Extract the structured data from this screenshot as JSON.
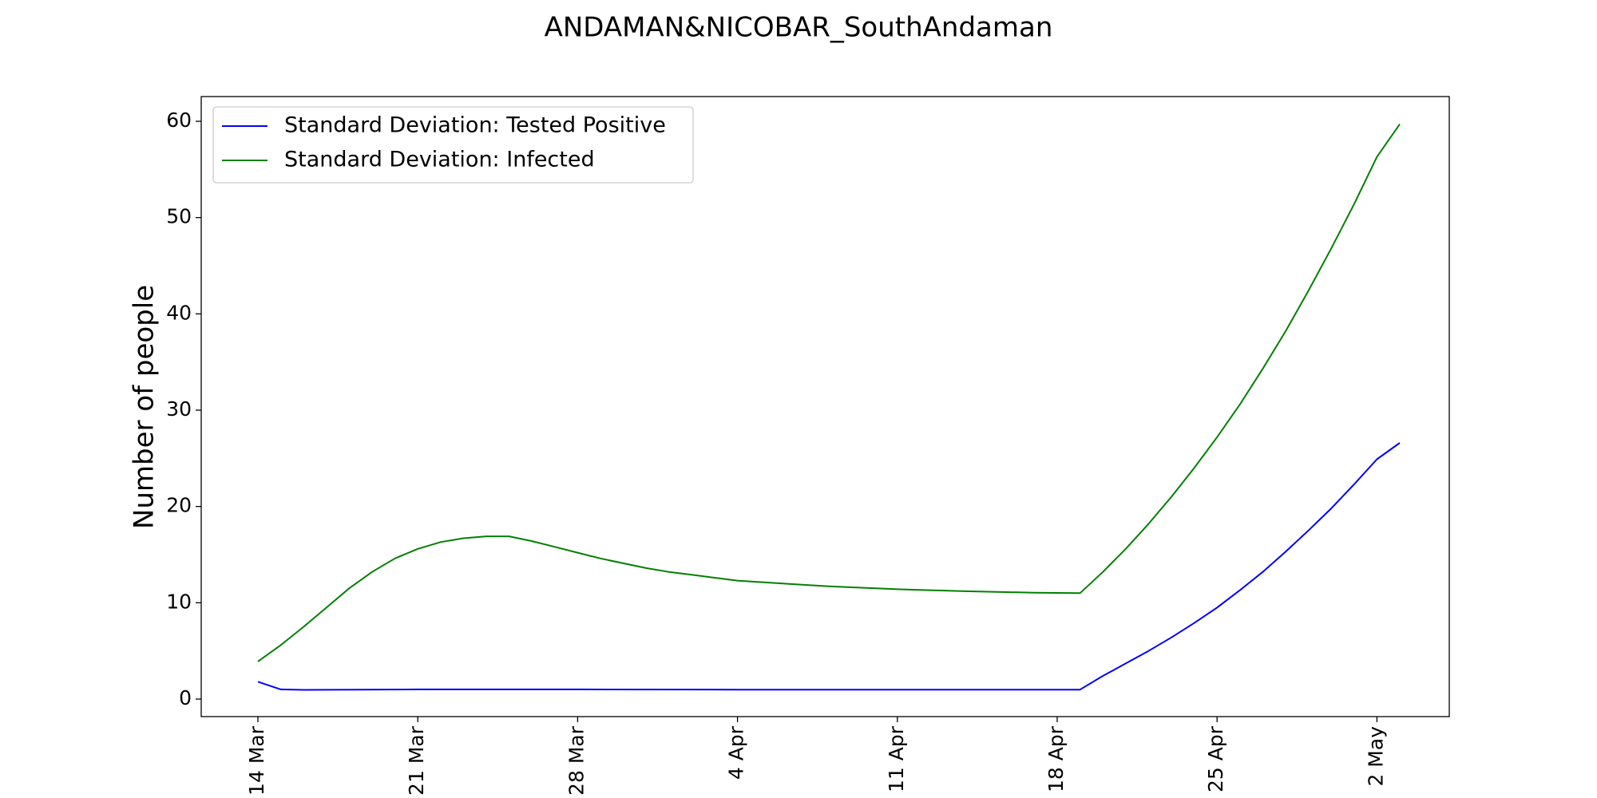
{
  "chart_data": {
    "type": "line",
    "title": "ANDAMAN&NICOBAR_SouthAndaman",
    "xlabel": "",
    "ylabel": "Number of people",
    "x_start": "2020-03-14",
    "x_tick_labels": [
      "14 Mar",
      "21 Mar",
      "28 Mar",
      "4 Apr",
      "11 Apr",
      "18 Apr",
      "25 Apr",
      "2 May"
    ],
    "y_ticks": [
      0,
      10,
      20,
      30,
      40,
      50,
      60
    ],
    "ylim": [
      -2,
      60
    ],
    "grid": false,
    "legend_position": "top-left",
    "series": [
      {
        "name": "Standard Deviation: Tested Positive",
        "color": "#0000ff",
        "points": [
          [
            "2020-03-14",
            1.8
          ],
          [
            "2020-03-15",
            1.0
          ],
          [
            "2020-03-16",
            0.95
          ],
          [
            "2020-03-21",
            1.0
          ],
          [
            "2020-03-28",
            1.0
          ],
          [
            "2020-04-04",
            0.98
          ],
          [
            "2020-04-11",
            0.98
          ],
          [
            "2020-04-18",
            0.98
          ],
          [
            "2020-04-19",
            0.98
          ],
          [
            "2020-04-20",
            2.4
          ],
          [
            "2020-04-21",
            3.7
          ],
          [
            "2020-04-22",
            5.0
          ],
          [
            "2020-04-23",
            6.4
          ],
          [
            "2020-04-24",
            7.9
          ],
          [
            "2020-04-25",
            9.5
          ],
          [
            "2020-04-26",
            11.3
          ],
          [
            "2020-04-27",
            13.2
          ],
          [
            "2020-04-28",
            15.3
          ],
          [
            "2020-04-29",
            17.5
          ],
          [
            "2020-04-30",
            19.8
          ],
          [
            "2020-05-01",
            22.3
          ],
          [
            "2020-05-02",
            24.9
          ],
          [
            "2020-05-03",
            26.6
          ]
        ]
      },
      {
        "name": "Standard Deviation: Infected",
        "color": "#008000",
        "points": [
          [
            "2020-03-14",
            3.9
          ],
          [
            "2020-03-15",
            5.6
          ],
          [
            "2020-03-16",
            7.5
          ],
          [
            "2020-03-17",
            9.5
          ],
          [
            "2020-03-18",
            11.5
          ],
          [
            "2020-03-19",
            13.2
          ],
          [
            "2020-03-20",
            14.6
          ],
          [
            "2020-03-21",
            15.6
          ],
          [
            "2020-03-22",
            16.3
          ],
          [
            "2020-03-23",
            16.7
          ],
          [
            "2020-03-24",
            16.9
          ],
          [
            "2020-03-25",
            16.9
          ],
          [
            "2020-03-26",
            16.4
          ],
          [
            "2020-03-27",
            15.8
          ],
          [
            "2020-03-28",
            15.2
          ],
          [
            "2020-03-29",
            14.6
          ],
          [
            "2020-03-30",
            14.1
          ],
          [
            "2020-03-31",
            13.6
          ],
          [
            "2020-04-01",
            13.2
          ],
          [
            "2020-04-02",
            12.9
          ],
          [
            "2020-04-03",
            12.6
          ],
          [
            "2020-04-04",
            12.3
          ],
          [
            "2020-04-06",
            12.0
          ],
          [
            "2020-04-08",
            11.7
          ],
          [
            "2020-04-11",
            11.4
          ],
          [
            "2020-04-14",
            11.2
          ],
          [
            "2020-04-17",
            11.05
          ],
          [
            "2020-04-19",
            11.0
          ],
          [
            "2020-04-20",
            13.2
          ],
          [
            "2020-04-21",
            15.6
          ],
          [
            "2020-04-22",
            18.2
          ],
          [
            "2020-04-23",
            21.0
          ],
          [
            "2020-04-24",
            24.0
          ],
          [
            "2020-04-25",
            27.2
          ],
          [
            "2020-04-26",
            30.6
          ],
          [
            "2020-04-27",
            34.3
          ],
          [
            "2020-04-28",
            38.2
          ],
          [
            "2020-04-29",
            42.4
          ],
          [
            "2020-04-30",
            46.8
          ],
          [
            "2020-05-01",
            51.4
          ],
          [
            "2020-05-02",
            56.3
          ],
          [
            "2020-05-03",
            59.7
          ]
        ]
      }
    ]
  }
}
